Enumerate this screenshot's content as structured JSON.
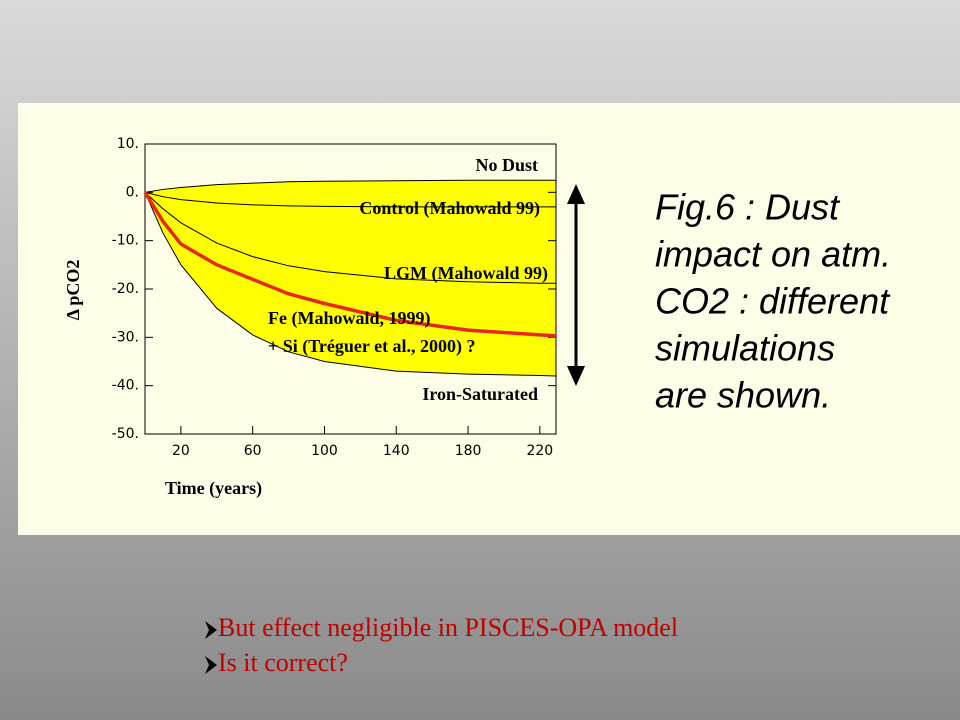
{
  "chart_data": {
    "type": "line",
    "xlabel": "Time (years)",
    "ylabel": "Δ pCO2",
    "x": [
      0,
      10,
      20,
      40,
      60,
      80,
      100,
      140,
      180,
      220,
      229
    ],
    "xlim": [
      0,
      229
    ],
    "xticks": [
      20,
      60,
      100,
      140,
      180,
      220
    ],
    "ylim": [
      -50,
      10
    ],
    "yticks": [
      {
        "value": 10,
        "label": "10."
      },
      {
        "value": 0,
        "label": "0."
      },
      {
        "value": -10,
        "label": "-10."
      },
      {
        "value": -20,
        "label": "-20."
      },
      {
        "value": -30,
        "label": "-30."
      },
      {
        "value": -40,
        "label": "-40."
      },
      {
        "value": -50,
        "label": "-50."
      }
    ],
    "band_color": "#ffff00",
    "series": [
      {
        "name": "No Dust",
        "color": "#000000",
        "values": [
          0,
          0.6,
          1,
          1.6,
          1.9,
          2.2,
          2.3,
          2.4,
          2.5,
          2.5,
          2.5
        ]
      },
      {
        "name": "Control (Mahowald 99)",
        "color": "#000000",
        "values": [
          0,
          -0.9,
          -1.5,
          -2.2,
          -2.6,
          -2.8,
          -2.9,
          -3,
          -3,
          -3,
          -3
        ]
      },
      {
        "name": "LGM (Mahowald 99)",
        "color": "#000000",
        "values": [
          0,
          -3.4,
          -6.3,
          -10.5,
          -13.3,
          -15.2,
          -16.4,
          -17.9,
          -18.5,
          -18.8,
          -18.8
        ]
      },
      {
        "name": "Iron-Saturated",
        "color": "#000000",
        "values": [
          0,
          -8.4,
          -15,
          -24,
          -29.5,
          -33,
          -35,
          -37,
          -37.6,
          -37.9,
          -38
        ]
      },
      {
        "name": "Fe (Mahowald, 1999)",
        "color": "#e8281e",
        "values": [
          0,
          -6,
          -10.7,
          -15,
          -18,
          -21,
          -23,
          -26.5,
          -28.5,
          -29.5,
          -29.7
        ]
      }
    ],
    "annotation": "+ Si (Tréguer et al., 2000) ?"
  },
  "caption": [
    "Fig.6 : Dust",
    "impact on atm.",
    "CO2 : different",
    "simulations",
    "are shown."
  ],
  "bullets": [
    "But effect negligible in PISCES-OPA model",
    "Is it correct?"
  ]
}
